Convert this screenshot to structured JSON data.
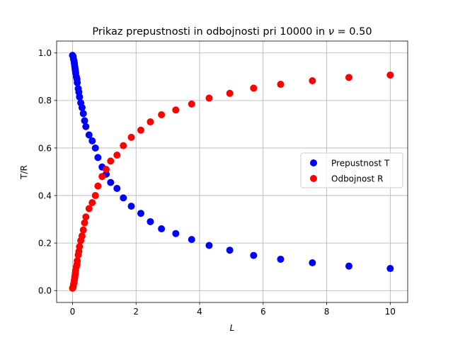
{
  "chart_data": {
    "type": "scatter",
    "title": "Prikaz prepustnosti in odbojnosti pri 10000 in ν = 0.50",
    "title_parts": {
      "main": "Prikaz prepustnosti in odbojnosti pri 10000 in ",
      "nu": "ν",
      "eq": " = 0.50"
    },
    "xlabel": "L",
    "ylabel": "T/R",
    "xlim": [
      -0.5,
      10.55
    ],
    "ylim": [
      -0.05,
      1.05
    ],
    "xticks": [
      0,
      2,
      4,
      6,
      8,
      10
    ],
    "xtick_labels": [
      "0",
      "2",
      "4",
      "6",
      "8",
      "10"
    ],
    "yticks": [
      0.0,
      0.2,
      0.4,
      0.6,
      0.8,
      1.0
    ],
    "ytick_labels": [
      "0.0",
      "0.2",
      "0.4",
      "0.6",
      "0.8",
      "1.0"
    ],
    "grid": true,
    "legend_position": "center-right",
    "series": [
      {
        "name": "Prepustnost T",
        "color": "#0000ff",
        "points": [
          [
            0.0,
            0.99
          ],
          [
            0.02,
            0.985
          ],
          [
            0.03,
            0.975
          ],
          [
            0.05,
            0.965
          ],
          [
            0.06,
            0.955
          ],
          [
            0.07,
            0.945
          ],
          [
            0.08,
            0.935
          ],
          [
            0.09,
            0.925
          ],
          [
            0.1,
            0.915
          ],
          [
            0.12,
            0.9
          ],
          [
            0.14,
            0.89
          ],
          [
            0.15,
            0.875
          ],
          [
            0.18,
            0.85
          ],
          [
            0.2,
            0.835
          ],
          [
            0.22,
            0.815
          ],
          [
            0.26,
            0.79
          ],
          [
            0.3,
            0.77
          ],
          [
            0.34,
            0.745
          ],
          [
            0.38,
            0.715
          ],
          [
            0.42,
            0.69
          ],
          [
            0.52,
            0.655
          ],
          [
            0.62,
            0.63
          ],
          [
            0.72,
            0.6
          ],
          [
            0.8,
            0.56
          ],
          [
            0.93,
            0.52
          ],
          [
            1.06,
            0.49
          ],
          [
            1.2,
            0.455
          ],
          [
            1.4,
            0.43
          ],
          [
            1.6,
            0.39
          ],
          [
            1.85,
            0.355
          ],
          [
            2.15,
            0.325
          ],
          [
            2.45,
            0.29
          ],
          [
            2.8,
            0.26
          ],
          [
            3.25,
            0.24
          ],
          [
            3.75,
            0.215
          ],
          [
            4.3,
            0.19
          ],
          [
            4.95,
            0.17
          ],
          [
            5.7,
            0.148
          ],
          [
            6.55,
            0.132
          ],
          [
            7.55,
            0.117
          ],
          [
            8.7,
            0.103
          ],
          [
            10.0,
            0.093
          ]
        ]
      },
      {
        "name": "Odbojnost R",
        "color": "#ff0000",
        "points": [
          [
            0.0,
            0.01
          ],
          [
            0.02,
            0.015
          ],
          [
            0.03,
            0.025
          ],
          [
            0.05,
            0.035
          ],
          [
            0.06,
            0.045
          ],
          [
            0.07,
            0.055
          ],
          [
            0.08,
            0.065
          ],
          [
            0.09,
            0.075
          ],
          [
            0.1,
            0.085
          ],
          [
            0.12,
            0.1
          ],
          [
            0.14,
            0.11
          ],
          [
            0.15,
            0.125
          ],
          [
            0.18,
            0.15
          ],
          [
            0.2,
            0.165
          ],
          [
            0.22,
            0.185
          ],
          [
            0.26,
            0.21
          ],
          [
            0.3,
            0.23
          ],
          [
            0.34,
            0.255
          ],
          [
            0.38,
            0.285
          ],
          [
            0.42,
            0.31
          ],
          [
            0.52,
            0.345
          ],
          [
            0.62,
            0.37
          ],
          [
            0.72,
            0.4
          ],
          [
            0.8,
            0.44
          ],
          [
            0.93,
            0.48
          ],
          [
            1.06,
            0.51
          ],
          [
            1.2,
            0.545
          ],
          [
            1.4,
            0.57
          ],
          [
            1.6,
            0.61
          ],
          [
            1.85,
            0.645
          ],
          [
            2.15,
            0.675
          ],
          [
            2.45,
            0.71
          ],
          [
            2.8,
            0.74
          ],
          [
            3.25,
            0.76
          ],
          [
            3.75,
            0.785
          ],
          [
            4.3,
            0.81
          ],
          [
            4.95,
            0.83
          ],
          [
            5.7,
            0.852
          ],
          [
            6.55,
            0.868
          ],
          [
            7.55,
            0.883
          ],
          [
            8.7,
            0.897
          ],
          [
            10.0,
            0.907
          ]
        ]
      }
    ]
  }
}
